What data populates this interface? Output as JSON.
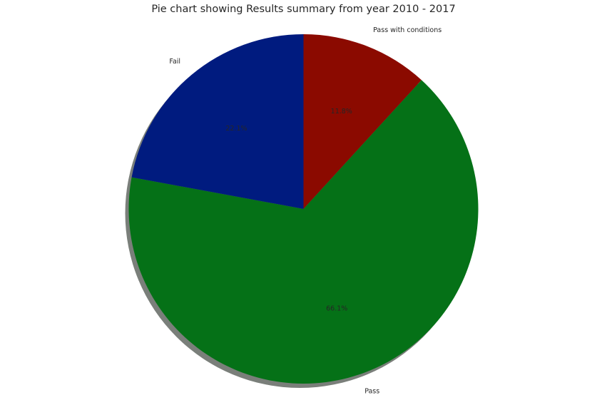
{
  "chart_data": {
    "type": "pie",
    "title": "Pie chart showing Results summary from year 2010 - 2017",
    "slices": [
      {
        "label": "Pass with conditions",
        "value": 11.8,
        "pct_label": "11.8%",
        "color": "#8b0a00"
      },
      {
        "label": "Pass",
        "value": 66.1,
        "pct_label": "66.1%",
        "color": "#057117"
      },
      {
        "label": "Fail",
        "value": 22.1,
        "pct_label": "22.1%",
        "color": "#001b7f"
      }
    ],
    "start_angle_deg": 90,
    "direction": "clockwise",
    "shadow": true,
    "shadow_color": "#7a7f7a"
  }
}
